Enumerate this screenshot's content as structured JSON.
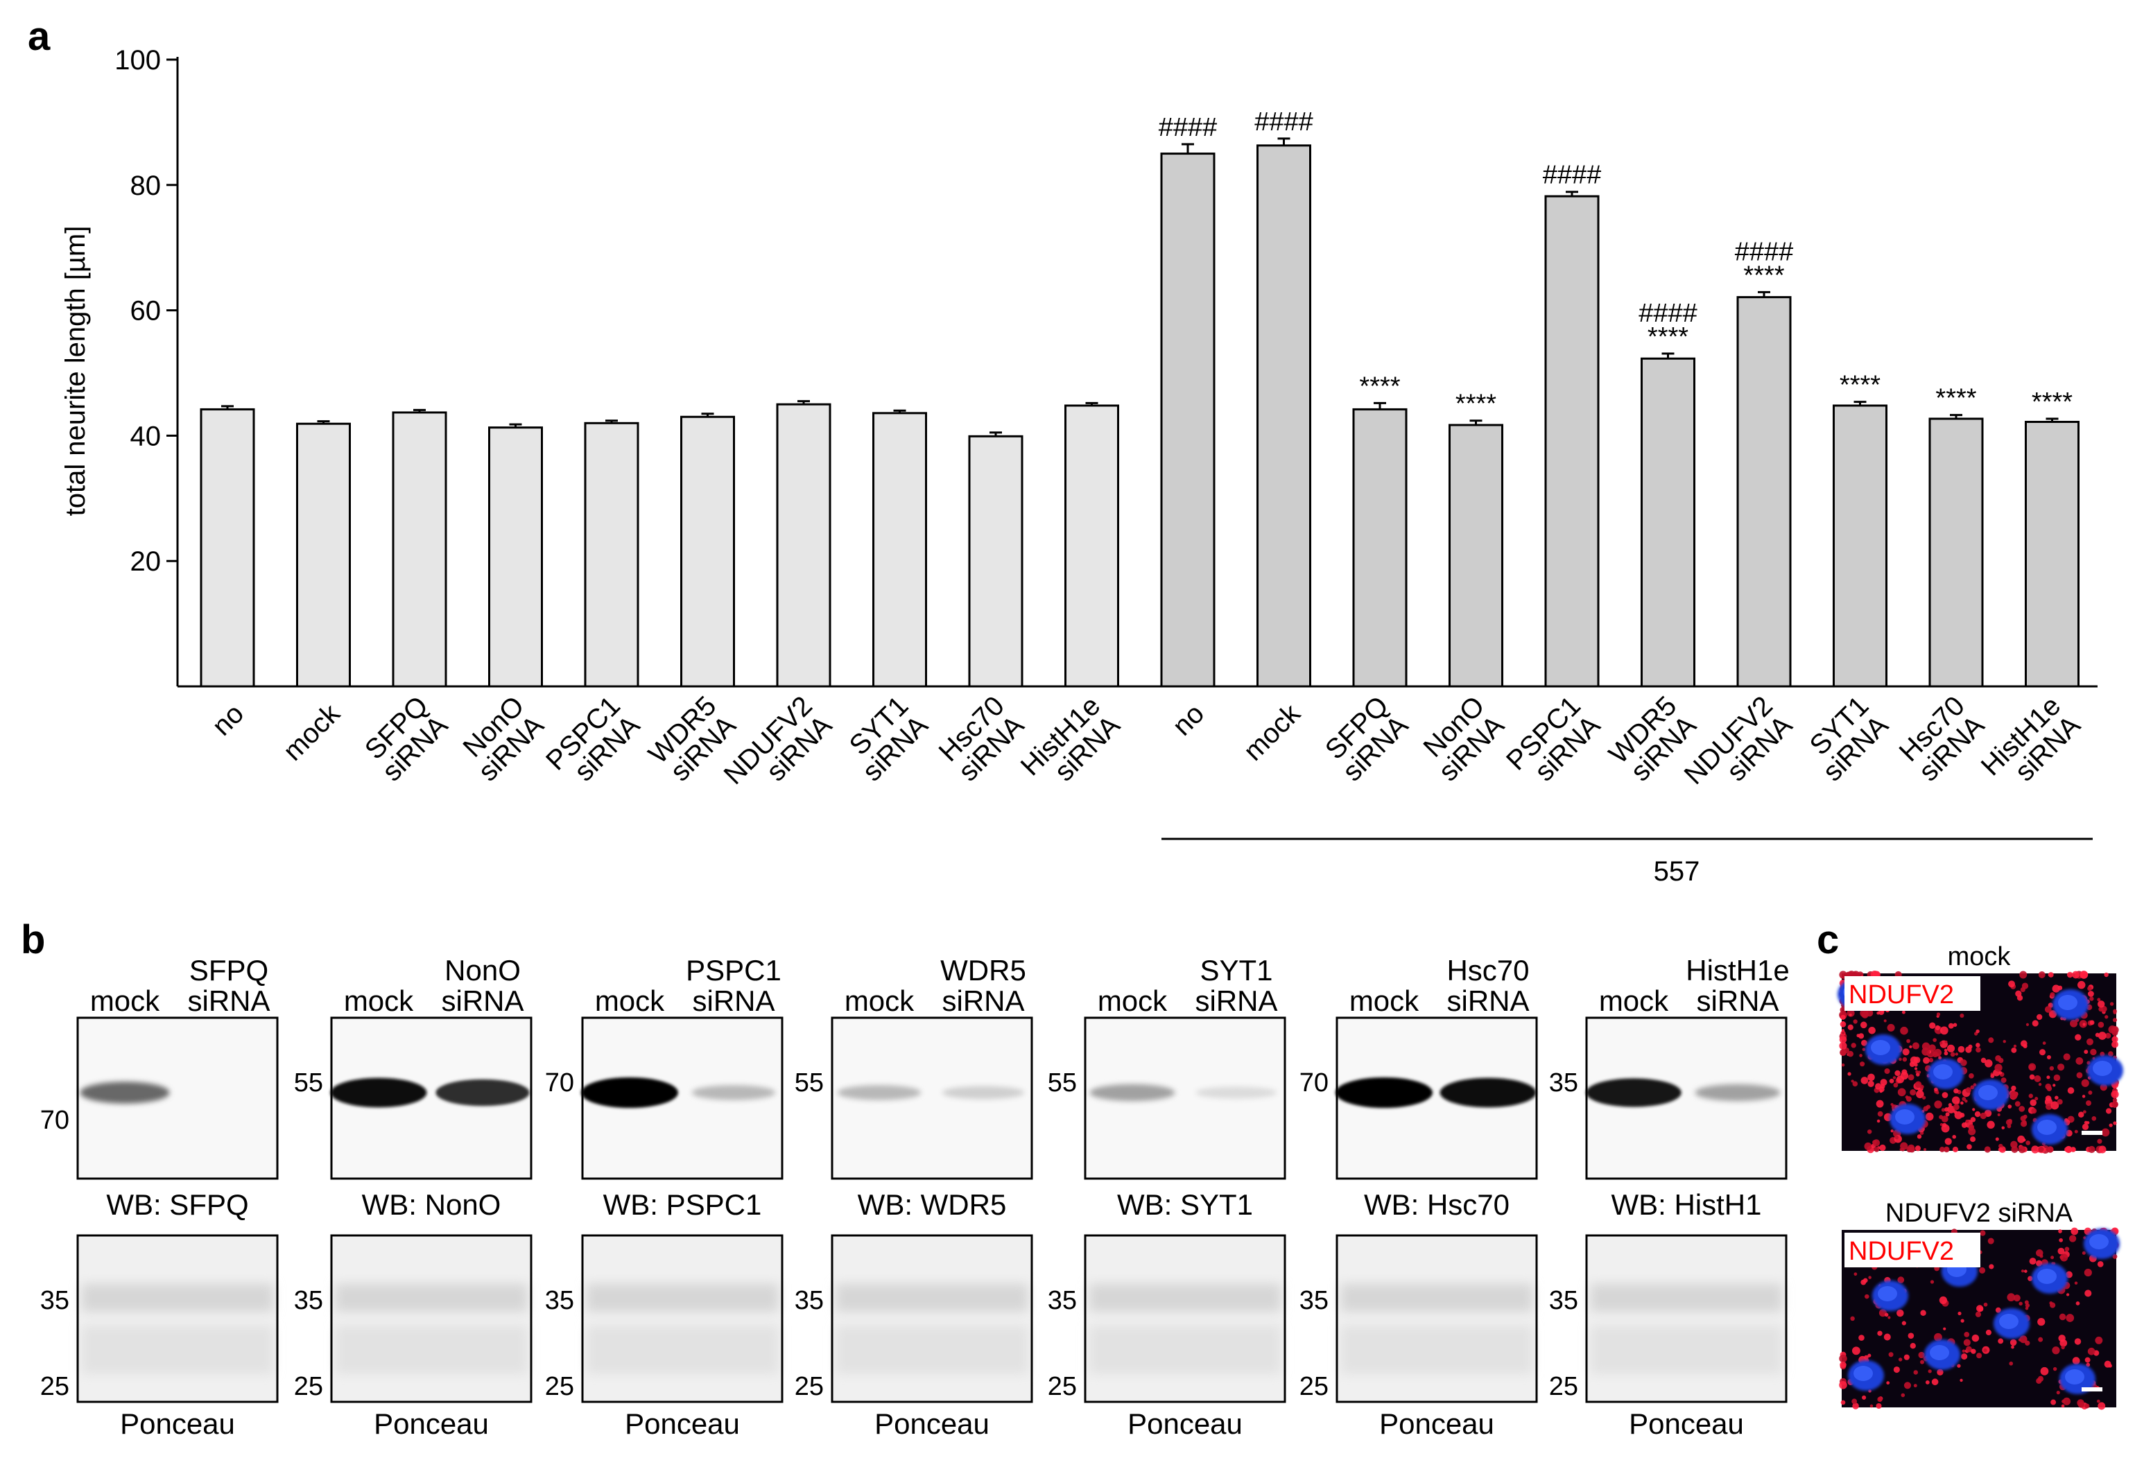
{
  "panel_labels": {
    "a": "a",
    "b": "b",
    "c": "c"
  },
  "chart_data": {
    "type": "bar",
    "ylabel": "total neurite length [µm]",
    "ylim": [
      0,
      100
    ],
    "yticks": [
      20,
      40,
      60,
      80,
      100
    ],
    "group_label": "557",
    "categories": [
      {
        "line1": "no",
        "line2": ""
      },
      {
        "line1": "mock",
        "line2": ""
      },
      {
        "line1": "SFPQ",
        "line2": "siRNA"
      },
      {
        "line1": "NonO",
        "line2": "siRNA"
      },
      {
        "line1": "PSPC1",
        "line2": "siRNA"
      },
      {
        "line1": "WDR5",
        "line2": "siRNA"
      },
      {
        "line1": "NDUFV2",
        "line2": "siRNA"
      },
      {
        "line1": "SYT1",
        "line2": "siRNA"
      },
      {
        "line1": "Hsc70",
        "line2": "siRNA"
      },
      {
        "line1": "HistH1e",
        "line2": "siRNA"
      },
      {
        "line1": "no",
        "line2": ""
      },
      {
        "line1": "mock",
        "line2": ""
      },
      {
        "line1": "SFPQ",
        "line2": "siRNA"
      },
      {
        "line1": "NonO",
        "line2": "siRNA"
      },
      {
        "line1": "PSPC1",
        "line2": "siRNA"
      },
      {
        "line1": "WDR5",
        "line2": "siRNA"
      },
      {
        "line1": "NDUFV2",
        "line2": "siRNA"
      },
      {
        "line1": "SYT1",
        "line2": "siRNA"
      },
      {
        "line1": "Hsc70",
        "line2": "siRNA"
      },
      {
        "line1": "HistH1e",
        "line2": "siRNA"
      }
    ],
    "values": [
      44.2,
      41.9,
      43.7,
      41.3,
      42.0,
      43.0,
      45.0,
      43.6,
      39.9,
      44.8,
      85.0,
      86.3,
      44.2,
      41.7,
      78.2,
      52.3,
      62.1,
      44.8,
      42.7,
      42.2
    ],
    "errors": [
      0.5,
      0.4,
      0.4,
      0.5,
      0.4,
      0.5,
      0.5,
      0.4,
      0.6,
      0.4,
      1.5,
      1.1,
      1.0,
      0.7,
      0.7,
      0.8,
      0.8,
      0.6,
      0.6,
      0.5
    ],
    "annotations": [
      "",
      "",
      "",
      "",
      "",
      "",
      "",
      "",
      "",
      "",
      "####",
      "####",
      "****",
      "****",
      "####",
      "####\n****",
      "####\n****",
      "****",
      "****",
      "****"
    ],
    "colors": {
      "control": "#e6e6e6",
      "treated": "#cdcdcd"
    }
  },
  "blots": [
    {
      "lane1": "mock",
      "lane2_top": "SFPQ",
      "lane2_bottom": "siRNA",
      "wb_label": "WB: SFPQ",
      "wb_marker": "70",
      "ponceau_markers": [
        "35",
        "25"
      ],
      "ponceau_label": "Ponceau",
      "band": [
        0.55,
        0.0
      ]
    },
    {
      "lane1": "mock",
      "lane2_top": "NonO",
      "lane2_bottom": "siRNA",
      "wb_label": "WB: NonO",
      "wb_marker": "55",
      "ponceau_markers": [
        "35",
        "25"
      ],
      "ponceau_label": "Ponceau",
      "band": [
        0.95,
        0.8
      ]
    },
    {
      "lane1": "mock",
      "lane2_top": "PSPC1",
      "lane2_bottom": "siRNA",
      "wb_label": "WB: PSPC1",
      "wb_marker": "70",
      "ponceau_markers": [
        "35",
        "25"
      ],
      "ponceau_label": "Ponceau",
      "band": [
        1.0,
        0.2
      ]
    },
    {
      "lane1": "mock",
      "lane2_top": "WDR5",
      "lane2_bottom": "siRNA",
      "wb_label": "WB: WDR5",
      "wb_marker": "55",
      "ponceau_markers": [
        "35",
        "25"
      ],
      "ponceau_label": "Ponceau",
      "band": [
        0.2,
        0.1
      ]
    },
    {
      "lane1": "mock",
      "lane2_top": "SYT1",
      "lane2_bottom": "siRNA",
      "wb_label": "WB: SYT1",
      "wb_marker": "55",
      "ponceau_markers": [
        "35",
        "25"
      ],
      "ponceau_label": "Ponceau",
      "band": [
        0.3,
        0.05
      ]
    },
    {
      "lane1": "mock",
      "lane2_top": "Hsc70",
      "lane2_bottom": "siRNA",
      "wb_label": "WB: Hsc70",
      "wb_marker": "70",
      "ponceau_markers": [
        "35",
        "25"
      ],
      "ponceau_label": "Ponceau",
      "band": [
        1.0,
        0.95
      ]
    },
    {
      "lane1": "mock",
      "lane2_top": "HistH1e",
      "lane2_bottom": "siRNA",
      "wb_label": "WB: HistH1",
      "wb_marker": "35",
      "ponceau_markers": [
        "35",
        "25"
      ],
      "ponceau_label": "Ponceau",
      "band": [
        0.9,
        0.3
      ]
    }
  ],
  "micrographs": [
    {
      "title": "mock",
      "stain": "NDUFV2",
      "condition": "mock"
    },
    {
      "title": "NDUFV2 siRNA",
      "stain": "NDUFV2",
      "condition": "knockdown"
    }
  ]
}
